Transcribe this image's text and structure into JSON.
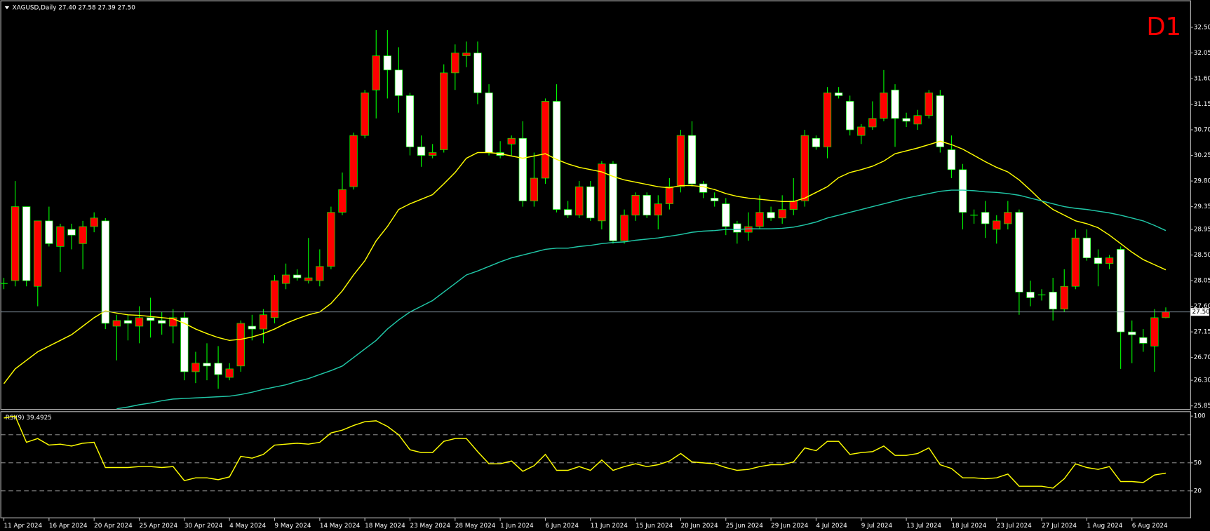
{
  "chart_data": [
    {
      "type": "candlestick",
      "title": "XAGUSD,Daily 27.40 27.58 27.39 27.50",
      "timeframe": "D1",
      "categories": [
        "11 Apr 2024",
        null,
        null,
        null,
        "16 Apr 2024",
        null,
        null,
        null,
        "20 Apr 2024",
        null,
        null,
        null,
        "25 Apr 2024",
        null,
        null,
        null,
        "30 Apr 2024",
        null,
        null,
        null,
        "4 May 2024",
        null,
        null,
        null,
        "9 May 2024",
        null,
        null,
        null,
        "14 May 2024",
        null,
        null,
        null,
        "18 May 2024",
        null,
        null,
        null,
        "23 May 2024",
        null,
        null,
        null,
        "28 May 2024",
        null,
        null,
        null,
        "1 Jun 2024",
        null,
        null,
        null,
        "6 Jun 2024",
        null,
        null,
        null,
        "11 Jun 2024",
        null,
        null,
        null,
        "15 Jun 2024",
        null,
        null,
        null,
        "20 Jun 2024",
        null,
        null,
        null,
        "25 Jun 2024",
        null,
        null,
        null,
        "29 Jun 2024",
        null,
        null,
        null,
        "4 Jul 2024",
        null,
        null,
        null,
        "9 Jul 2024",
        null,
        null,
        null,
        "13 Jul 2024",
        null,
        null,
        null,
        "18 Jul 2024",
        null,
        null,
        null,
        "23 Jul 2024",
        null,
        null,
        null,
        "27 Jul 2024",
        null,
        null,
        null,
        "1 Aug 2024",
        null,
        null,
        null,
        "6 Aug 2024",
        null,
        null,
        null
      ],
      "open": [
        28.0,
        28.05,
        29.35,
        27.95,
        29.1,
        28.65,
        28.95,
        28.7,
        29.0,
        29.1,
        27.25,
        27.35,
        27.25,
        27.4,
        27.35,
        27.25,
        27.4,
        26.45,
        26.6,
        26.6,
        26.35,
        26.55,
        27.25,
        27.2,
        27.4,
        28.0,
        28.15,
        28.05,
        28.05,
        28.3,
        29.25,
        29.7,
        30.6,
        31.4,
        32.0,
        31.75,
        31.3,
        30.4,
        30.25,
        30.35,
        31.7,
        32.0,
        32.05,
        31.35,
        30.3,
        30.45,
        30.55,
        29.45,
        29.85,
        31.2,
        29.3,
        29.2,
        29.7,
        29.1,
        30.1,
        28.75,
        29.2,
        29.55,
        29.2,
        29.4,
        29.7,
        30.6,
        29.75,
        29.5,
        29.4,
        29.05,
        28.9,
        29.0,
        29.25,
        29.15,
        29.3,
        29.45,
        30.55,
        30.4,
        31.35,
        31.2,
        30.6,
        30.75,
        30.9,
        31.4,
        30.9,
        30.8,
        30.95,
        31.3,
        30.35,
        30.0,
        29.2,
        29.25,
        28.95,
        29.05,
        29.25,
        27.85,
        27.8,
        27.85,
        27.55,
        27.95,
        28.8,
        28.45,
        28.35,
        28.6,
        27.15,
        27.05,
        26.9,
        27.4
      ],
      "high": [
        28.1,
        29.8,
        29.35,
        29.1,
        29.35,
        29.05,
        29.05,
        29.1,
        29.25,
        29.15,
        27.45,
        27.45,
        27.6,
        27.75,
        27.5,
        27.55,
        27.5,
        26.8,
        26.95,
        26.9,
        26.6,
        27.35,
        27.45,
        27.55,
        28.15,
        28.35,
        28.25,
        28.8,
        28.6,
        29.35,
        29.95,
        30.65,
        31.4,
        32.45,
        32.45,
        32.15,
        31.35,
        30.6,
        30.45,
        31.85,
        32.2,
        32.25,
        32.25,
        31.5,
        30.5,
        30.6,
        30.85,
        30.3,
        31.25,
        31.5,
        29.45,
        29.8,
        29.8,
        30.15,
        30.15,
        29.3,
        29.6,
        29.6,
        29.55,
        29.85,
        30.7,
        30.85,
        29.8,
        29.6,
        29.5,
        29.1,
        29.25,
        29.55,
        29.35,
        29.55,
        29.85,
        30.7,
        30.6,
        31.45,
        31.45,
        31.3,
        30.8,
        31.2,
        31.75,
        31.5,
        31.0,
        31.05,
        31.4,
        31.4,
        30.6,
        30.1,
        29.3,
        29.45,
        29.2,
        29.45,
        29.3,
        28.05,
        27.9,
        28.1,
        28.25,
        28.95,
        28.95,
        28.6,
        28.5,
        28.65,
        27.35,
        27.2,
        27.55,
        27.58
      ],
      "low": [
        27.9,
        27.95,
        27.95,
        27.6,
        28.65,
        28.2,
        28.6,
        28.25,
        28.9,
        27.2,
        26.65,
        27.0,
        26.95,
        27.05,
        27.1,
        26.95,
        26.3,
        26.25,
        26.3,
        26.15,
        26.3,
        26.45,
        27.0,
        26.95,
        27.3,
        27.9,
        28.05,
        28.0,
        27.95,
        28.25,
        29.2,
        29.65,
        30.55,
        30.9,
        31.25,
        31.0,
        30.25,
        30.05,
        30.2,
        30.3,
        31.4,
        31.8,
        31.15,
        30.25,
        30.2,
        30.25,
        29.35,
        29.35,
        29.75,
        29.25,
        29.15,
        29.15,
        29.1,
        28.95,
        28.7,
        28.7,
        29.1,
        29.15,
        28.95,
        29.3,
        29.6,
        29.7,
        29.5,
        29.35,
        28.85,
        28.7,
        28.75,
        28.95,
        29.1,
        29.05,
        29.2,
        29.35,
        30.35,
        30.2,
        31.25,
        30.6,
        30.45,
        30.7,
        30.85,
        30.4,
        30.75,
        30.7,
        30.9,
        30.3,
        29.85,
        28.95,
        29.05,
        28.8,
        28.7,
        28.95,
        27.45,
        27.6,
        27.7,
        27.35,
        27.5,
        27.9,
        28.4,
        27.95,
        28.25,
        26.5,
        26.6,
        26.8,
        26.45,
        27.39
      ],
      "close": [
        28.0,
        29.35,
        28.05,
        29.1,
        28.7,
        29.0,
        28.85,
        29.0,
        29.15,
        27.3,
        27.35,
        27.3,
        27.4,
        27.35,
        27.3,
        27.4,
        26.45,
        26.6,
        26.55,
        26.4,
        26.5,
        27.3,
        27.2,
        27.45,
        28.05,
        28.15,
        28.1,
        28.1,
        28.3,
        29.25,
        29.65,
        30.6,
        31.35,
        32.0,
        31.75,
        31.3,
        30.4,
        30.25,
        30.3,
        31.7,
        32.05,
        32.05,
        31.35,
        30.3,
        30.25,
        30.55,
        29.45,
        29.85,
        31.2,
        29.3,
        29.2,
        29.7,
        29.15,
        30.1,
        28.75,
        29.2,
        29.55,
        29.2,
        29.4,
        29.7,
        30.6,
        29.75,
        29.6,
        29.45,
        29.0,
        28.9,
        29.0,
        29.25,
        29.15,
        29.3,
        29.45,
        30.6,
        30.4,
        31.35,
        31.3,
        30.7,
        30.75,
        30.9,
        31.35,
        30.9,
        30.85,
        30.95,
        31.35,
        30.4,
        30.0,
        29.25,
        29.2,
        29.05,
        29.1,
        29.25,
        27.85,
        27.75,
        27.8,
        27.55,
        27.95,
        28.8,
        28.45,
        28.35,
        28.45,
        27.15,
        27.1,
        26.95,
        27.4,
        27.5
      ],
      "up_color": "#ff0000",
      "down_color": "#ffffff",
      "wick_color": "#00ff00",
      "series": [
        {
          "color": "#ffff00",
          "values": [
            26.24,
            26.5,
            26.65,
            26.8,
            26.9,
            27.0,
            27.1,
            27.25,
            27.4,
            27.52,
            27.48,
            27.45,
            27.44,
            27.42,
            27.4,
            27.38,
            27.3,
            27.2,
            27.12,
            27.05,
            27.0,
            27.02,
            27.06,
            27.12,
            27.2,
            27.3,
            27.38,
            27.45,
            27.5,
            27.65,
            27.87,
            28.15,
            28.4,
            28.75,
            29.0,
            29.3,
            29.4,
            29.48,
            29.56,
            29.75,
            29.95,
            30.2,
            30.3,
            30.3,
            30.28,
            30.24,
            30.2,
            30.24,
            30.28,
            30.18,
            30.1,
            30.04,
            30.0,
            29.96,
            29.88,
            29.82,
            29.78,
            29.74,
            29.7,
            29.68,
            29.72,
            29.72,
            29.7,
            29.65,
            29.58,
            29.53,
            29.5,
            29.48,
            29.46,
            29.44,
            29.44,
            29.5,
            29.6,
            29.7,
            29.86,
            29.95,
            30.0,
            30.06,
            30.15,
            30.28,
            30.33,
            30.38,
            30.44,
            30.5,
            30.44,
            30.36,
            30.25,
            30.14,
            30.04,
            29.96,
            29.82,
            29.64,
            29.45,
            29.3,
            29.2,
            29.1,
            29.05,
            28.98,
            28.85,
            28.7,
            28.55,
            28.42,
            28.33,
            28.24
          ]
        },
        {
          "color": "#20c8a8",
          "values": [
            null,
            null,
            null,
            null,
            null,
            null,
            null,
            null,
            null,
            null,
            25.8,
            25.83,
            25.87,
            25.9,
            25.94,
            25.97,
            25.98,
            25.99,
            26.0,
            26.01,
            26.02,
            26.05,
            26.09,
            26.14,
            26.18,
            26.22,
            26.28,
            26.33,
            26.4,
            26.47,
            26.55,
            26.7,
            26.85,
            27.0,
            27.2,
            27.36,
            27.5,
            27.6,
            27.7,
            27.85,
            28.0,
            28.15,
            28.22,
            28.3,
            28.38,
            28.45,
            28.5,
            28.55,
            28.6,
            28.62,
            28.62,
            28.65,
            28.67,
            28.7,
            28.72,
            28.73,
            28.76,
            28.78,
            28.8,
            28.83,
            28.86,
            28.9,
            28.92,
            28.93,
            28.95,
            28.95,
            28.96,
            28.96,
            28.96,
            28.97,
            28.99,
            29.03,
            29.08,
            29.15,
            29.2,
            29.25,
            29.3,
            29.35,
            29.4,
            29.45,
            29.5,
            29.54,
            29.58,
            29.62,
            29.64,
            29.64,
            29.63,
            29.61,
            29.6,
            29.58,
            29.55,
            29.5,
            29.45,
            29.4,
            29.35,
            29.32,
            29.3,
            29.27,
            29.24,
            29.2,
            29.15,
            29.1,
            29.02,
            28.93
          ]
        }
      ],
      "ylim": [
        25.79,
        32.98
      ],
      "yticks": [
        {
          "value": 32.5,
          "label": "32.50"
        },
        {
          "value": 32.05,
          "label": "32.05"
        },
        {
          "value": 31.6,
          "label": "31.60"
        },
        {
          "value": 31.15,
          "label": "31.15"
        },
        {
          "value": 30.7,
          "label": "30.70"
        },
        {
          "value": 30.25,
          "label": "30.25"
        },
        {
          "value": 29.8,
          "label": "29.80"
        },
        {
          "value": 29.35,
          "label": "29.35"
        },
        {
          "value": 28.95,
          "label": "28.95"
        },
        {
          "value": 28.5,
          "label": "28.50"
        },
        {
          "value": 28.05,
          "label": "28.05"
        },
        {
          "value": 27.6,
          "label": "27.60"
        },
        {
          "value": 27.15,
          "label": "27.15"
        },
        {
          "value": 26.7,
          "label": "26.70"
        },
        {
          "value": 26.3,
          "label": "26.30"
        },
        {
          "value": 25.85,
          "label": "25.85"
        }
      ],
      "last_price": {
        "value": 27.5,
        "label": "27.50"
      }
    },
    {
      "type": "line",
      "title": "RSI(9) 39.4925",
      "series": [
        {
          "color": "#ffff00",
          "values": [
            98,
            100,
            72,
            76,
            69,
            70,
            68,
            71,
            72,
            45,
            45,
            45,
            46,
            46,
            45,
            46,
            31,
            34,
            34,
            32,
            35,
            57,
            55,
            59,
            69,
            70,
            71,
            70,
            72,
            82,
            85,
            90,
            94,
            95,
            89,
            80,
            64,
            61,
            61,
            73,
            76,
            76,
            62,
            49,
            49,
            52,
            41,
            47,
            59,
            42,
            42,
            46,
            42,
            53,
            42,
            46,
            49,
            46,
            48,
            52,
            60,
            51,
            50,
            49,
            45,
            42,
            43,
            46,
            48,
            48,
            51,
            66,
            63,
            73,
            73,
            59,
            61,
            62,
            68,
            58,
            58,
            60,
            66,
            48,
            44,
            34,
            34,
            33,
            34,
            38,
            25,
            25,
            25,
            23,
            33,
            49,
            45,
            43,
            46,
            30,
            30,
            29,
            37,
            39
          ]
        }
      ],
      "ylim": [
        -8.8,
        104.8
      ],
      "yticks": [
        20,
        50,
        100
      ],
      "levels": [
        20,
        50,
        80
      ]
    }
  ]
}
